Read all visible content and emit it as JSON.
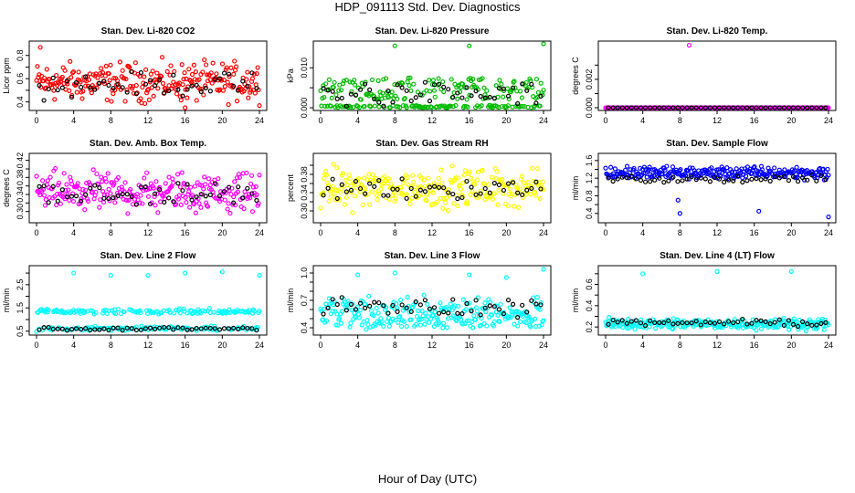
{
  "title": "HDP_091113  Std. Dev. Diagnostics",
  "x_title": "Hour of Day (UTC)",
  "chart_data": [
    {
      "type": "scatter",
      "title": "Stan. Dev. Li-820 CO2",
      "ylabel": "Licor ppm",
      "color": "#ff0000",
      "xlim": [
        0,
        24
      ],
      "ylim": [
        0.35,
        0.9
      ],
      "xticks": [
        0,
        4,
        8,
        12,
        16,
        20,
        24
      ],
      "yticks": [
        0.4,
        0.5,
        0.6,
        0.7,
        0.8
      ],
      "ytick_labels": [
        "0.4",
        "",
        "0.6",
        "",
        "0.8"
      ],
      "center": 0.57,
      "spread": 0.08,
      "outliers": [
        [
          0.4,
          0.87
        ],
        [
          16,
          0.33
        ]
      ],
      "black_offset": -0.02
    },
    {
      "type": "scatter",
      "title": "Stan. Dev. Li-820 Pressure",
      "ylabel": "kPa",
      "color": "#00bb00",
      "xlim": [
        0,
        24
      ],
      "ylim": [
        0,
        0.016
      ],
      "xticks": [
        0,
        4,
        8,
        12,
        16,
        20,
        24
      ],
      "yticks": [
        0,
        0.005,
        0.01
      ],
      "ytick_labels": [
        "0.000",
        "",
        "0.010"
      ],
      "center": 0.0045,
      "spread": 0.0025,
      "outliers": [
        [
          8,
          0.0155
        ],
        [
          16,
          0.0155
        ],
        [
          24,
          0.016
        ]
      ],
      "black_offset": -0.001
    },
    {
      "type": "scatter",
      "title": "Stan. Dev. Li-820 Temp.",
      "ylabel": "degrees C",
      "color": "#ff00ff",
      "xlim": [
        0,
        24
      ],
      "ylim": [
        0,
        0.0045
      ],
      "xticks": [
        0,
        4,
        8,
        12,
        16,
        20,
        24
      ],
      "yticks": [
        0,
        0.001,
        0.002,
        0.003
      ],
      "ytick_labels": [
        "0.000",
        "",
        "0.002",
        ""
      ],
      "center": 0,
      "spread": 0,
      "outliers": [
        [
          9,
          0.0044
        ]
      ],
      "black_offset": 0
    },
    {
      "type": "scatter",
      "title": "Stan. Dev. Amb. Box Temp.",
      "ylabel": "degrees C",
      "color": "#ff00ff",
      "xlim": [
        0,
        24
      ],
      "ylim": [
        0.28,
        0.43
      ],
      "xticks": [
        0,
        4,
        8,
        12,
        16,
        20,
        24
      ],
      "yticks": [
        0.3,
        0.32,
        0.34,
        0.36,
        0.38,
        0.4,
        0.42
      ],
      "ytick_labels": [
        "0.30",
        "",
        "0.34",
        "",
        "0.38",
        "",
        "0.42"
      ],
      "center": 0.345,
      "spread": 0.022,
      "outliers": [],
      "black_offset": -0.005
    },
    {
      "type": "scatter",
      "title": "Stan. Dev. Gas Stream RH",
      "ylabel": "percent",
      "color": "#ffff00",
      "xlim": [
        0,
        24
      ],
      "ylim": [
        0.28,
        0.42
      ],
      "xticks": [
        0,
        4,
        8,
        12,
        16,
        20,
        24
      ],
      "yticks": [
        0.3,
        0.32,
        0.34,
        0.36,
        0.38,
        0.4
      ],
      "ytick_labels": [
        "0.30",
        "",
        "0.34",
        "",
        "0.38",
        ""
      ],
      "center": 0.35,
      "spread": 0.02,
      "outliers": [],
      "black_offset": 0
    },
    {
      "type": "scatter",
      "title": "Stan. Dev. Sample Flow",
      "ylabel": "ml/min",
      "color": "#0000ff",
      "xlim": [
        0,
        24
      ],
      "ylim": [
        0.25,
        1.7
      ],
      "xticks": [
        0,
        4,
        8,
        12,
        16,
        20,
        24
      ],
      "yticks": [
        0.4,
        0.6,
        0.8,
        1.0,
        1.2,
        1.4,
        1.6
      ],
      "ytick_labels": [
        "0.4",
        "",
        "0.8",
        "",
        "1.2",
        "",
        "1.6"
      ],
      "center": 1.32,
      "spread": 0.07,
      "outliers": [
        [
          7.8,
          0.7
        ],
        [
          8,
          0.4
        ],
        [
          16.5,
          0.45
        ],
        [
          24,
          0.32
        ]
      ],
      "black_offset": -0.15
    },
    {
      "type": "scatter",
      "title": "Stan. Dev. Line 2 Flow",
      "ylabel": "ml/min",
      "color": "#00ffff",
      "xlim": [
        0,
        24
      ],
      "ylim": [
        0.45,
        3.2
      ],
      "xticks": [
        0,
        4,
        8,
        12,
        16,
        20,
        24
      ],
      "yticks": [
        0.5,
        1.0,
        1.5,
        2.0,
        2.5,
        3.0
      ],
      "ytick_labels": [
        "0.5",
        "",
        "1.5",
        "",
        "2.5",
        ""
      ],
      "center": 1.35,
      "spread": 0.06,
      "outliers": [
        [
          4,
          3.0
        ],
        [
          8,
          2.9
        ],
        [
          12,
          2.9
        ],
        [
          16,
          3.0
        ],
        [
          20,
          3.05
        ],
        [
          24,
          2.9
        ]
      ],
      "black_offset": -0.7
    },
    {
      "type": "scatter",
      "title": "Stan. Dev. Line 3 Flow",
      "ylabel": "ml/min",
      "color": "#00ffff",
      "xlim": [
        0,
        24
      ],
      "ylim": [
        0.35,
        1.05
      ],
      "xticks": [
        0,
        4,
        8,
        12,
        16,
        20,
        24
      ],
      "yticks": [
        0.4,
        0.5,
        0.6,
        0.7,
        0.8,
        0.9,
        1.0
      ],
      "ytick_labels": [
        "0.4",
        "",
        "",
        "0.7",
        "",
        "",
        "1.0"
      ],
      "center": 0.58,
      "spread": 0.1,
      "outliers": [
        [
          4,
          0.98
        ],
        [
          8,
          1.0
        ],
        [
          16,
          0.98
        ],
        [
          20,
          0.95
        ],
        [
          24,
          1.04
        ]
      ],
      "black_offset": 0.05
    },
    {
      "type": "scatter",
      "title": "Stan. Dev. Line 4 (LT) Flow",
      "ylabel": "ml/min",
      "color": "#00ffff",
      "xlim": [
        0,
        24
      ],
      "ylim": [
        0.15,
        0.75
      ],
      "xticks": [
        0,
        4,
        8,
        12,
        16,
        20,
        24
      ],
      "yticks": [
        0.2,
        0.3,
        0.4,
        0.5,
        0.6,
        0.7
      ],
      "ytick_labels": [
        "0.2",
        "",
        "0.4",
        "",
        "0.6",
        ""
      ],
      "center": 0.23,
      "spread": 0.025,
      "outliers": [
        [
          4,
          0.7
        ],
        [
          12,
          0.72
        ],
        [
          20,
          0.72
        ]
      ],
      "black_offset": 0.01
    }
  ]
}
